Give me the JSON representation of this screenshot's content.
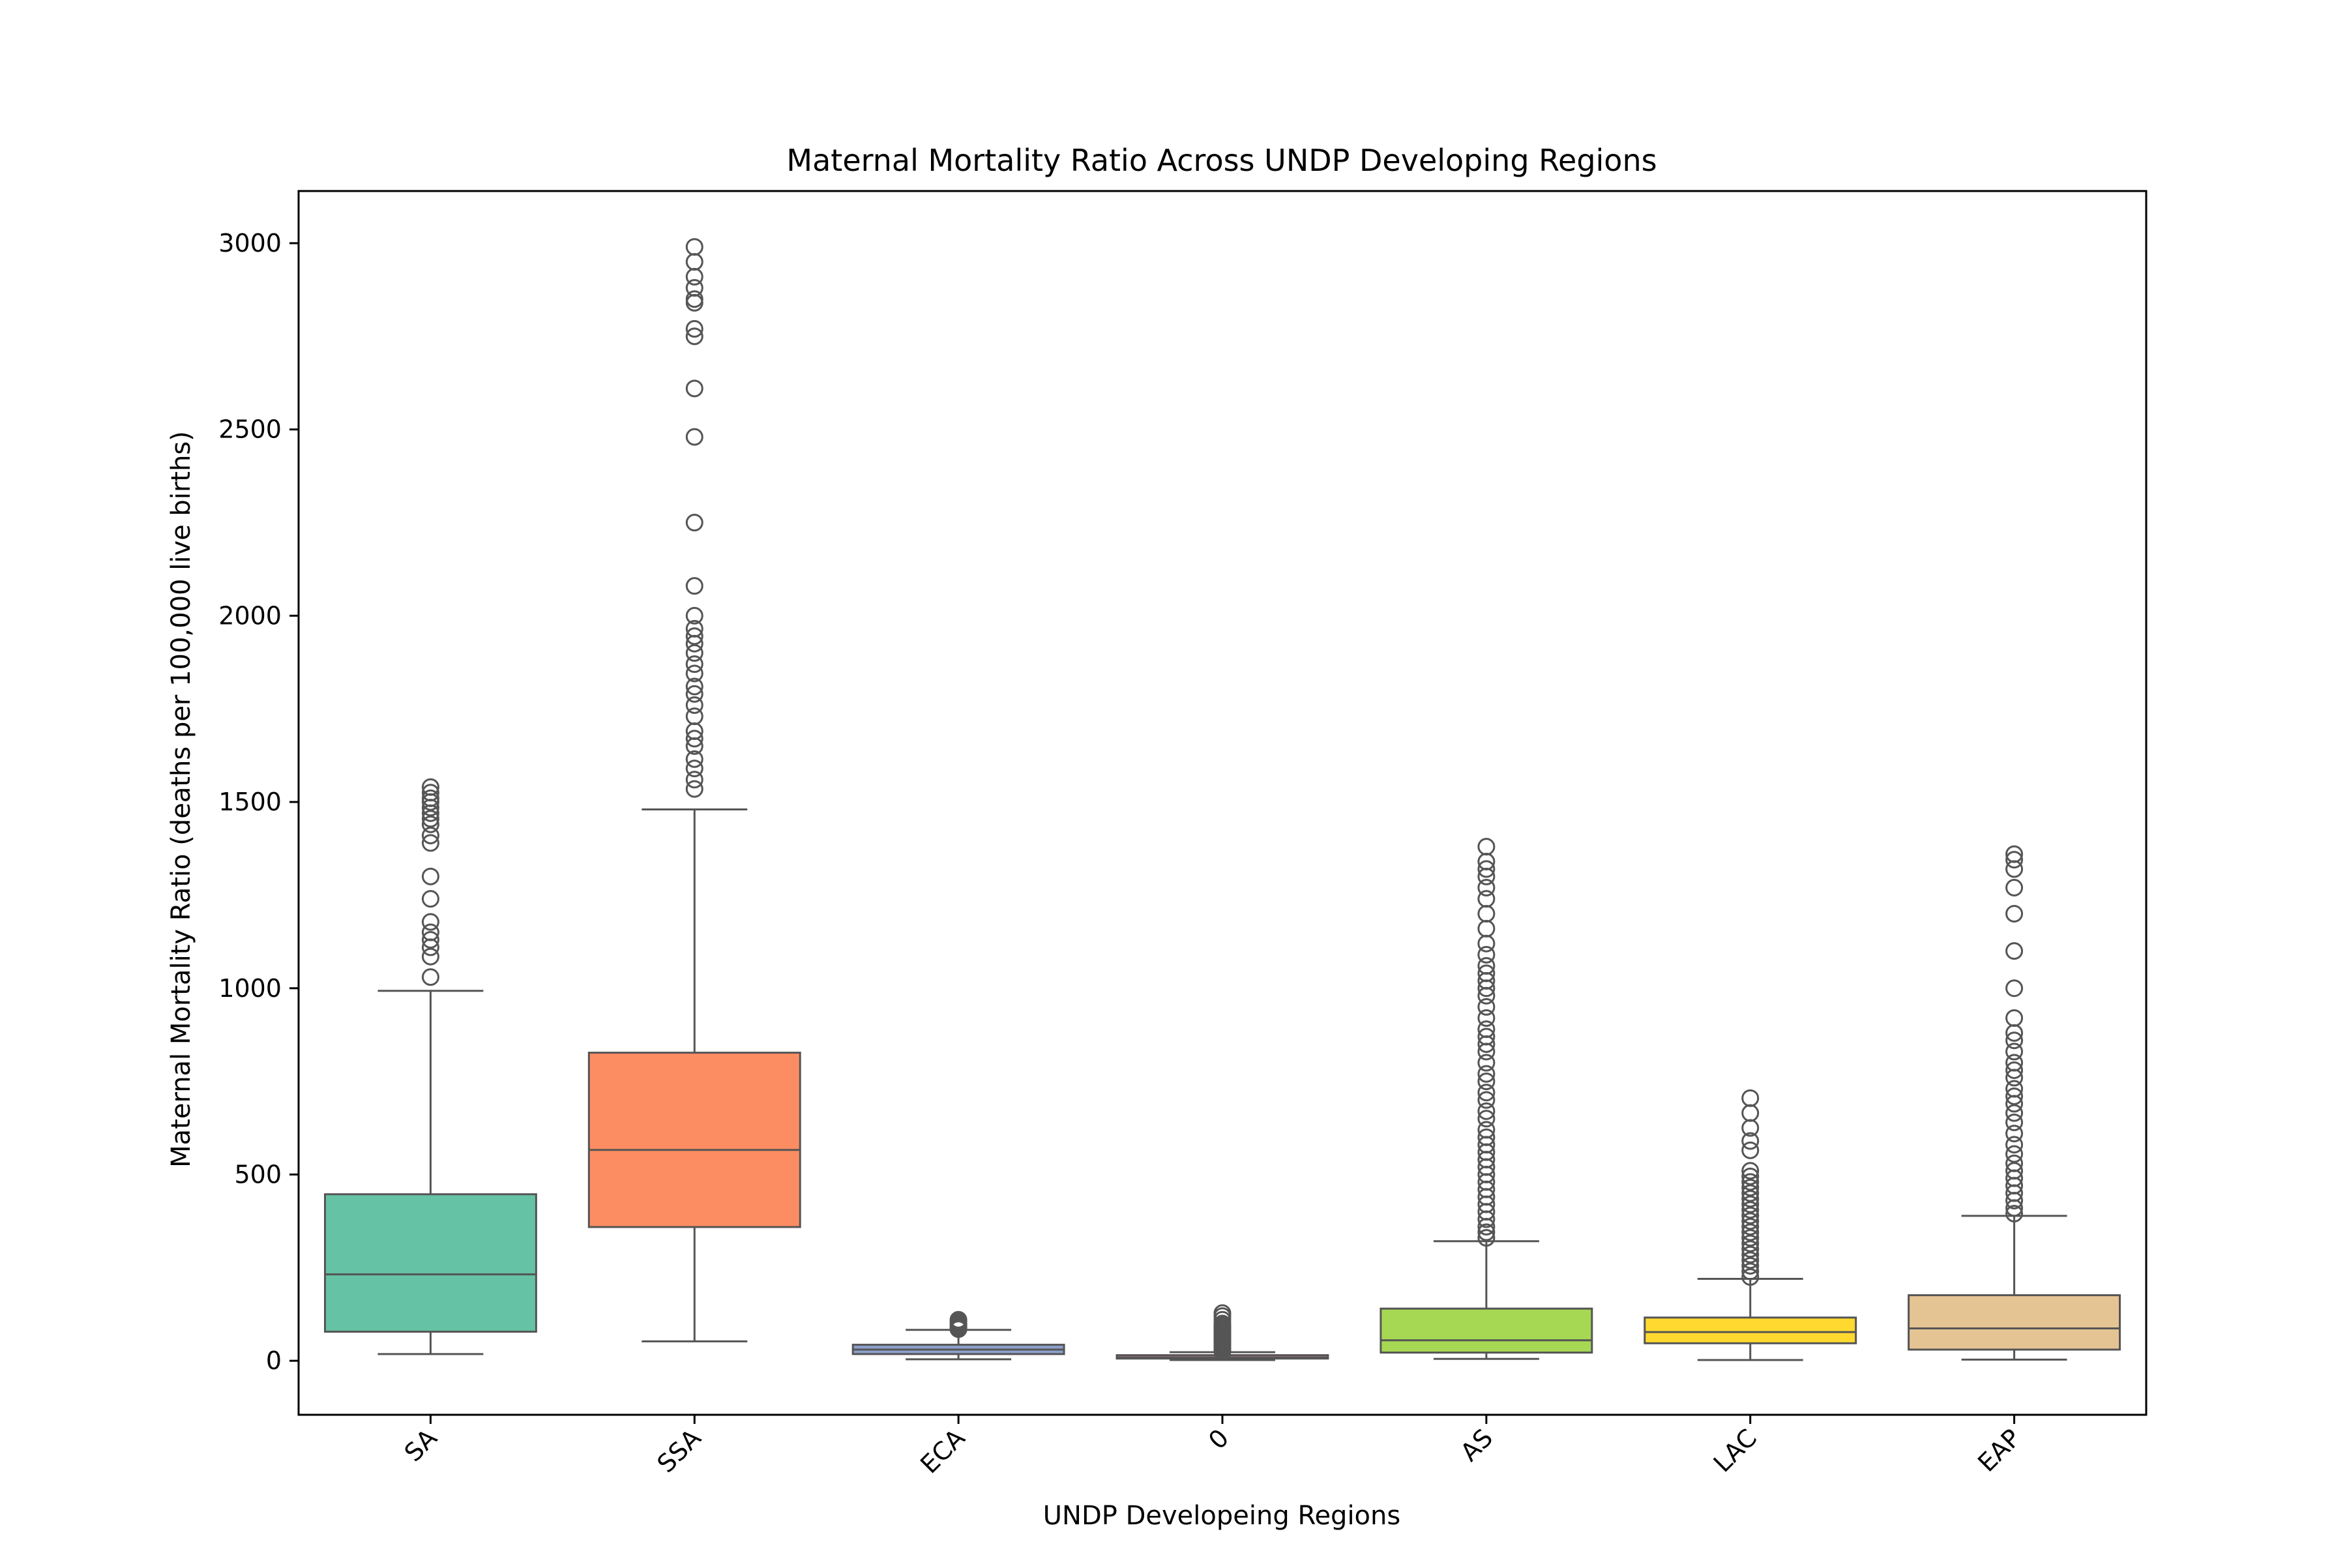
{
  "chart_data": {
    "type": "box",
    "title": "Maternal Mortality Ratio Across UNDP Developing Regions",
    "xlabel": "UNDP Developeing Regions",
    "ylabel": "Maternal Mortality Ratio (deaths per 100,000 live births)",
    "ylim": [
      -145,
      3140
    ],
    "yticks": [
      0,
      500,
      1000,
      1500,
      2000,
      2500,
      3000
    ],
    "ytick_labels": [
      "0",
      "500",
      "1000",
      "1500",
      "2000",
      "2500",
      "3000"
    ],
    "grid": false,
    "legend": "none",
    "categories": [
      "SA",
      "SSA",
      "ECA",
      "0",
      "AS",
      "LAC",
      "EAP"
    ],
    "boxes": [
      {
        "category": "SA",
        "color": "#66c2a5",
        "whisker_low": 18,
        "q1": 78,
        "median": 232,
        "q3": 447,
        "whisker_high": 993,
        "outliers": [
          1030,
          1085,
          1110,
          1130,
          1150,
          1178,
          1240,
          1300,
          1390,
          1410,
          1440,
          1455,
          1470,
          1485,
          1500,
          1510,
          1525,
          1540
        ]
      },
      {
        "category": "SSA",
        "color": "#fc8d62",
        "whisker_low": 52,
        "q1": 359,
        "median": 566,
        "q3": 827,
        "whisker_high": 1480,
        "outliers": [
          1535,
          1560,
          1590,
          1615,
          1650,
          1670,
          1690,
          1730,
          1760,
          1790,
          1810,
          1845,
          1870,
          1900,
          1925,
          1945,
          1965,
          2000,
          2080,
          2250,
          2480,
          2610,
          2750,
          2770,
          2840,
          2850,
          2880,
          2910,
          2950,
          2990
        ]
      },
      {
        "category": "ECA",
        "color": "#8da0cb",
        "whisker_low": 4,
        "q1": 18,
        "median": 30,
        "q3": 43,
        "whisker_high": 83,
        "outliers": [
          85,
          90,
          95,
          100,
          105,
          110
        ]
      },
      {
        "category": "0",
        "color": "#e78ac3",
        "whisker_low": 2,
        "q1": 6,
        "median": 9,
        "q3": 15,
        "whisker_high": 23,
        "outliers": [
          25,
          30,
          35,
          40,
          45,
          50,
          55,
          60,
          65,
          70,
          75,
          80,
          85,
          90,
          95,
          100,
          110,
          120,
          128
        ]
      },
      {
        "category": "AS",
        "color": "#a6d854",
        "whisker_low": 5,
        "q1": 22,
        "median": 55,
        "q3": 140,
        "whisker_high": 321,
        "outliers": [
          330,
          345,
          360,
          380,
          400,
          420,
          440,
          460,
          480,
          500,
          520,
          540,
          560,
          580,
          600,
          620,
          650,
          670,
          700,
          720,
          750,
          770,
          800,
          830,
          850,
          870,
          890,
          920,
          950,
          980,
          1000,
          1020,
          1040,
          1060,
          1090,
          1120,
          1160,
          1200,
          1240,
          1270,
          1300,
          1320,
          1340,
          1380
        ]
      },
      {
        "category": "LAC",
        "color": "#ffd92f",
        "whisker_low": 2,
        "q1": 47,
        "median": 77,
        "q3": 116,
        "whisker_high": 220,
        "outliers": [
          225,
          240,
          255,
          270,
          285,
          300,
          315,
          330,
          345,
          360,
          375,
          390,
          405,
          420,
          435,
          450,
          465,
          480,
          495,
          510,
          565,
          590,
          625,
          665,
          705
        ]
      },
      {
        "category": "EAP",
        "color": "#e5c494",
        "whisker_low": 3,
        "q1": 30,
        "median": 87,
        "q3": 176,
        "whisker_high": 389,
        "outliers": [
          395,
          410,
          430,
          450,
          470,
          490,
          510,
          530,
          555,
          580,
          610,
          640,
          665,
          690,
          710,
          730,
          760,
          780,
          800,
          830,
          860,
          880,
          920,
          1000,
          1100,
          1200,
          1270,
          1320,
          1345,
          1360
        ]
      }
    ]
  }
}
